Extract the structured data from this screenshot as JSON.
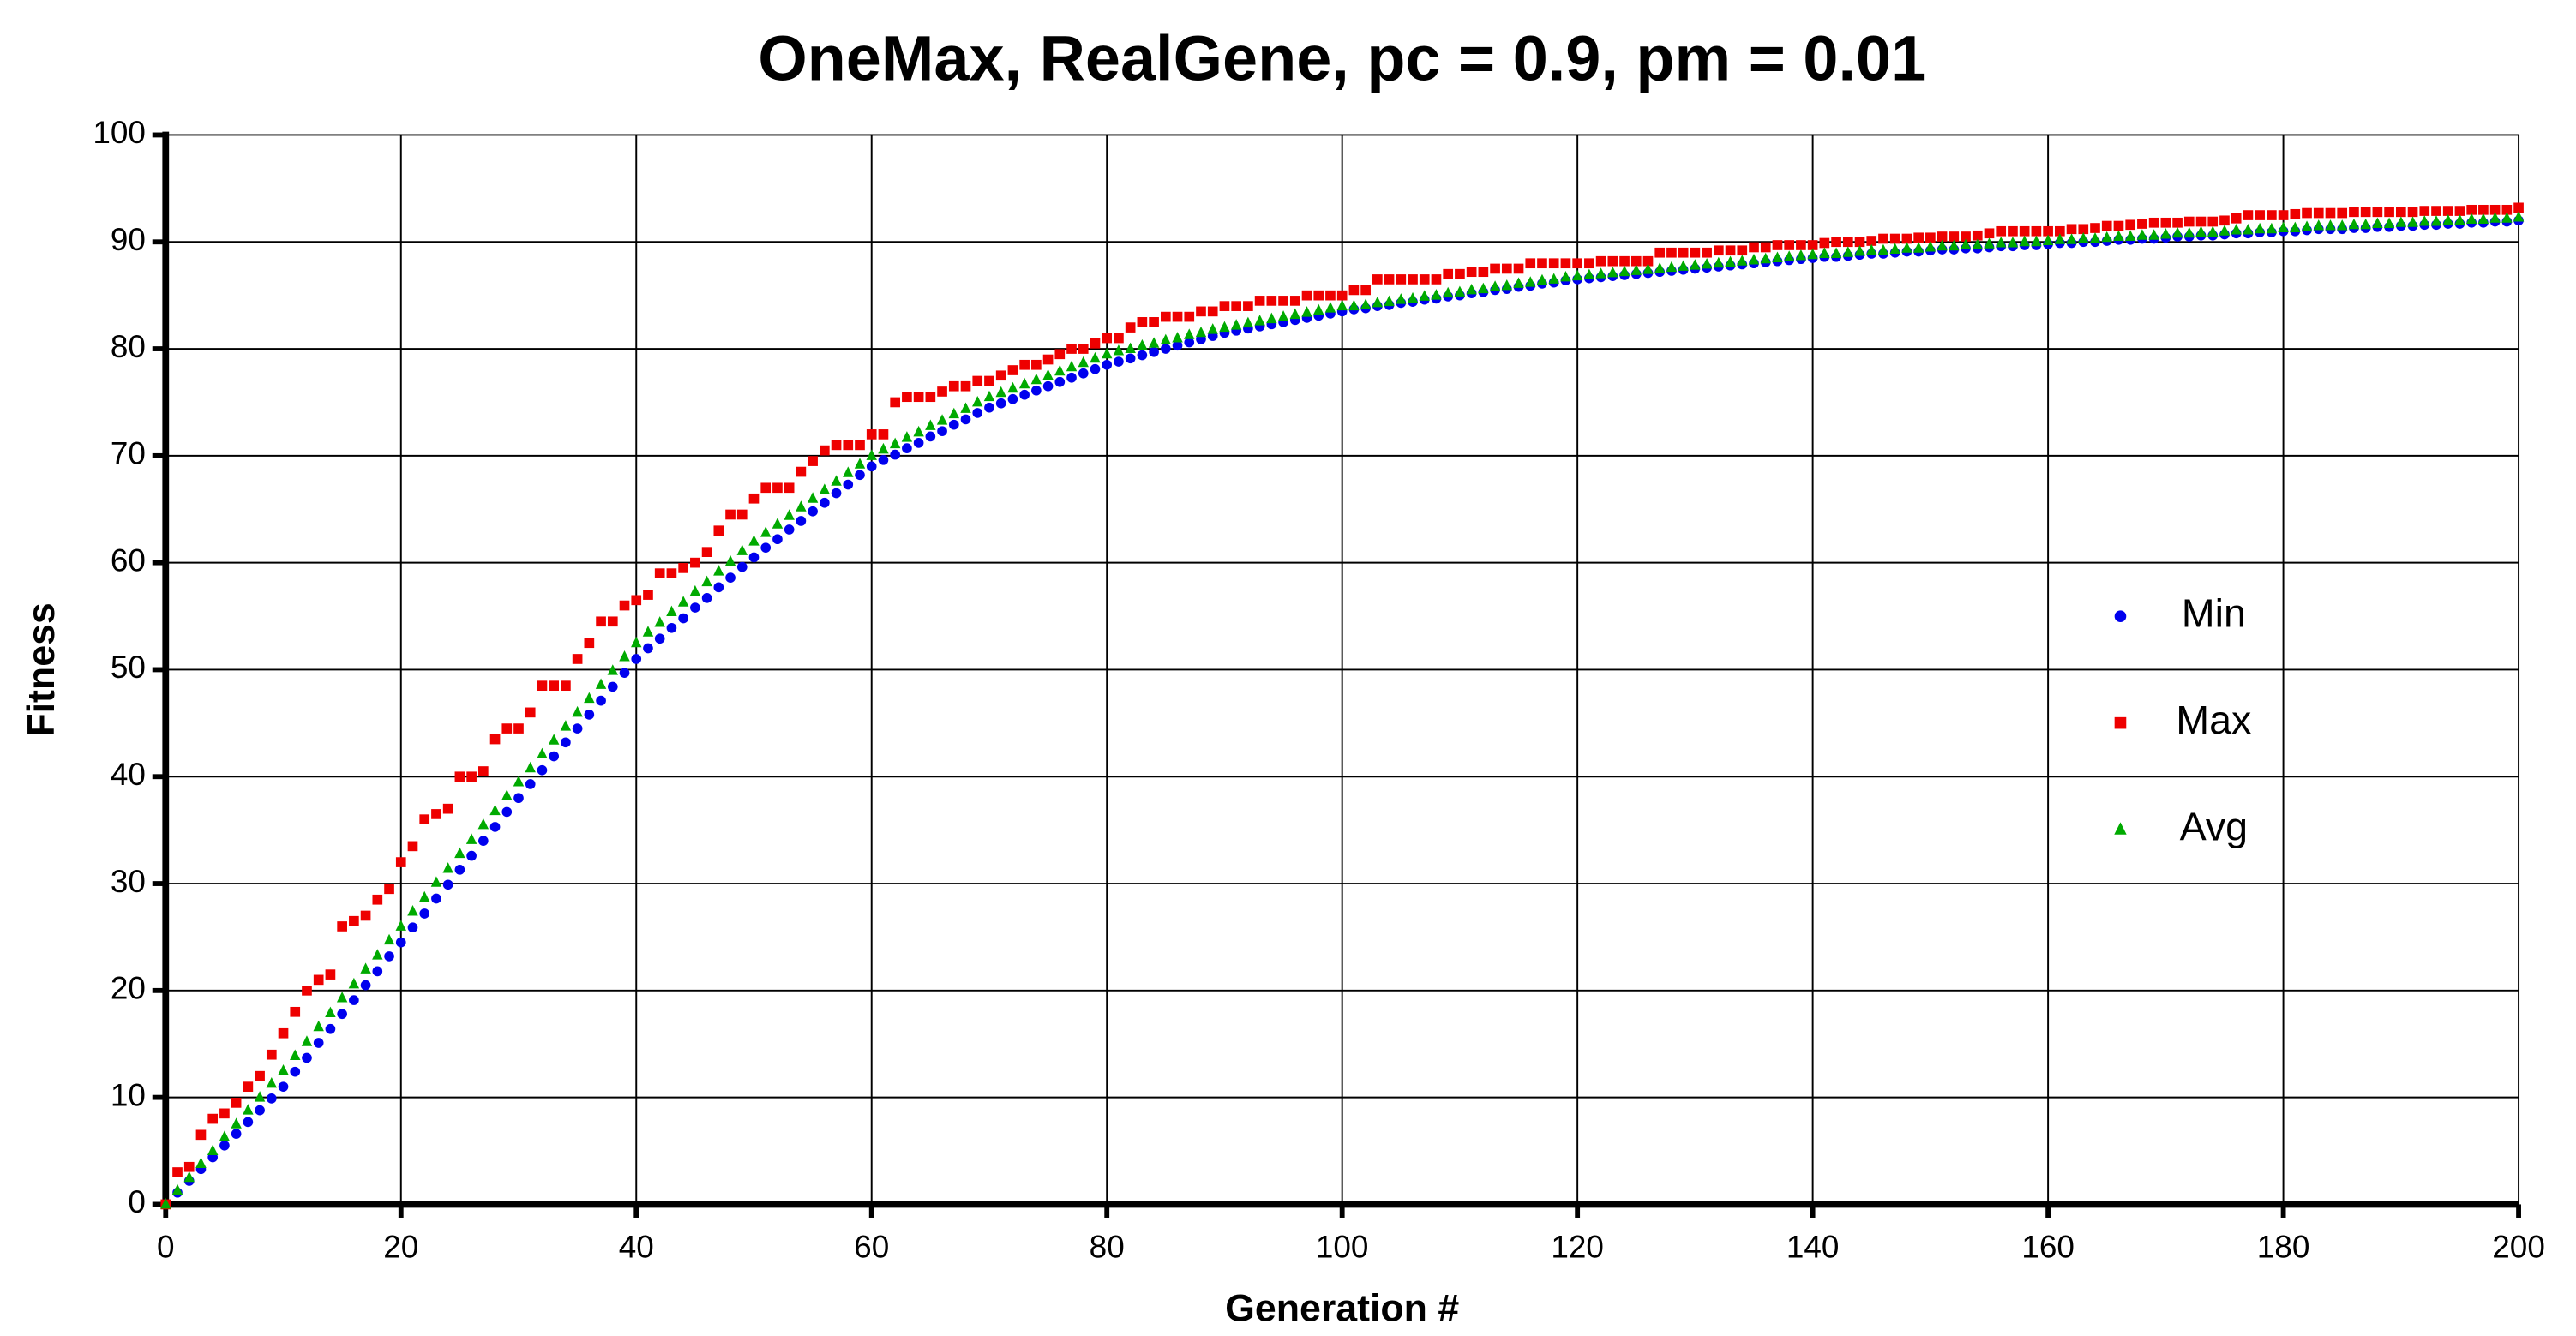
{
  "chart_data": {
    "type": "scatter",
    "title": "OneMax, RealGene, pc = 0.9, pm = 0.01",
    "x_label": "Generation #",
    "y_label": "Fitness",
    "xlim": [
      0,
      200
    ],
    "ylim": [
      0,
      100
    ],
    "xticks": [
      0,
      20,
      40,
      60,
      80,
      100,
      120,
      140,
      160,
      180,
      200
    ],
    "yticks": [
      0,
      10,
      20,
      30,
      40,
      50,
      60,
      70,
      80,
      90,
      100
    ],
    "grid": true,
    "legend": "right",
    "x": [
      0,
      1,
      2,
      3,
      4,
      5,
      6,
      7,
      8,
      9,
      10,
      11,
      12,
      13,
      14,
      15,
      16,
      17,
      18,
      19,
      20,
      21,
      22,
      23,
      24,
      25,
      26,
      27,
      28,
      29,
      30,
      31,
      32,
      33,
      34,
      35,
      36,
      37,
      38,
      39,
      40,
      41,
      42,
      43,
      44,
      45,
      46,
      47,
      48,
      49,
      50,
      51,
      52,
      53,
      54,
      55,
      56,
      57,
      58,
      59,
      60,
      61,
      62,
      63,
      64,
      65,
      66,
      67,
      68,
      69,
      70,
      71,
      72,
      73,
      74,
      75,
      76,
      77,
      78,
      79,
      80,
      81,
      82,
      83,
      84,
      85,
      86,
      87,
      88,
      89,
      90,
      91,
      92,
      93,
      94,
      95,
      96,
      97,
      98,
      99,
      100,
      101,
      102,
      103,
      104,
      105,
      106,
      107,
      108,
      109,
      110,
      111,
      112,
      113,
      114,
      115,
      116,
      117,
      118,
      119,
      120,
      121,
      122,
      123,
      124,
      125,
      126,
      127,
      128,
      129,
      130,
      131,
      132,
      133,
      134,
      135,
      136,
      137,
      138,
      139,
      140,
      141,
      142,
      143,
      144,
      145,
      146,
      147,
      148,
      149,
      150,
      151,
      152,
      153,
      154,
      155,
      156,
      157,
      158,
      159,
      160,
      161,
      162,
      163,
      164,
      165,
      166,
      167,
      168,
      169,
      170,
      171,
      172,
      173,
      174,
      175,
      176,
      177,
      178,
      179,
      180,
      181,
      182,
      183,
      184,
      185,
      186,
      187,
      188,
      189,
      190,
      191,
      192,
      193,
      194,
      195,
      196,
      197,
      198,
      199,
      200
    ],
    "series": [
      {
        "name": "Min",
        "color": "#0000ee",
        "marker": "circle",
        "values": [
          0,
          1.1,
          2.2,
          3.3,
          4.4,
          5.5,
          6.6,
          7.7,
          8.8,
          9.9,
          11,
          12.4,
          13.7,
          15.1,
          16.4,
          17.8,
          19.1,
          20.5,
          21.8,
          23.2,
          24.5,
          25.9,
          27.2,
          28.6,
          29.9,
          31.3,
          32.6,
          34,
          35.3,
          36.7,
          38,
          39.3,
          40.6,
          41.9,
          43.2,
          44.5,
          45.8,
          47.1,
          48.4,
          49.7,
          51,
          52,
          52.9,
          53.9,
          54.8,
          55.8,
          56.7,
          57.7,
          58.6,
          59.6,
          60.5,
          61.4,
          62.2,
          63.1,
          63.9,
          64.8,
          65.6,
          66.5,
          67.3,
          68.2,
          69,
          69.6,
          70.1,
          70.7,
          71.2,
          71.8,
          72.3,
          72.9,
          73.4,
          74,
          74.5,
          74.9,
          75.3,
          75.7,
          76.1,
          76.5,
          76.9,
          77.3,
          77.7,
          78.1,
          78.5,
          78.8,
          79.1,
          79.4,
          79.7,
          80,
          80.3,
          80.6,
          80.9,
          81.2,
          81.5,
          81.7,
          81.9,
          82.1,
          82.3,
          82.5,
          82.7,
          82.9,
          83.1,
          83.3,
          83.5,
          83.7,
          83.8,
          84,
          84.1,
          84.3,
          84.4,
          84.6,
          84.7,
          84.9,
          85,
          85.2,
          85.3,
          85.5,
          85.6,
          85.8,
          85.9,
          86.1,
          86.2,
          86.4,
          86.5,
          86.6,
          86.7,
          86.8,
          86.9,
          87,
          87.1,
          87.2,
          87.3,
          87.4,
          87.5,
          87.6,
          87.7,
          87.8,
          87.9,
          88,
          88.1,
          88.2,
          88.3,
          88.4,
          88.5,
          88.6,
          88.6,
          88.7,
          88.8,
          88.9,
          88.9,
          89,
          89.1,
          89.1,
          89.2,
          89.3,
          89.3,
          89.4,
          89.4,
          89.5,
          89.6,
          89.6,
          89.7,
          89.7,
          89.8,
          89.9,
          89.9,
          90,
          90,
          90.1,
          90.2,
          90.2,
          90.3,
          90.3,
          90.4,
          90.5,
          90.5,
          90.6,
          90.6,
          90.7,
          90.8,
          90.8,
          90.9,
          90.9,
          91,
          91,
          91.1,
          91.2,
          91.2,
          91.2,
          91.3,
          91.3,
          91.4,
          91.4,
          91.5,
          91.5,
          91.6,
          91.6,
          91.7,
          91.7,
          91.8,
          91.8,
          91.9,
          91.9,
          92
        ]
      },
      {
        "name": "Max",
        "color": "#ee0000",
        "marker": "square",
        "values": [
          0,
          3,
          3.5,
          6.5,
          8,
          8.5,
          9.5,
          11,
          12,
          14,
          16,
          18,
          20,
          21,
          21.5,
          26,
          26.5,
          27,
          28.5,
          29.5,
          32,
          33.5,
          36,
          36.5,
          37,
          40,
          40,
          40.5,
          43.5,
          44.5,
          44.5,
          46,
          48.5,
          48.5,
          48.5,
          51,
          52.5,
          54.5,
          54.5,
          56,
          56.5,
          57,
          59,
          59,
          59.5,
          60,
          61,
          63,
          64.5,
          64.5,
          66,
          67,
          67,
          67,
          68.5,
          69.5,
          70.5,
          71,
          71,
          71,
          72,
          72,
          75,
          75.5,
          75.5,
          75.5,
          76,
          76.5,
          76.5,
          77,
          77,
          77.5,
          78,
          78.5,
          78.5,
          79,
          79.5,
          80,
          80,
          80.5,
          81,
          81,
          82,
          82.5,
          82.5,
          83,
          83,
          83,
          83.5,
          83.5,
          84,
          84,
          84,
          84.5,
          84.5,
          84.5,
          84.5,
          85,
          85,
          85,
          85,
          85.5,
          85.5,
          86.5,
          86.5,
          86.5,
          86.5,
          86.5,
          86.5,
          87,
          87,
          87.2,
          87.2,
          87.5,
          87.5,
          87.5,
          88,
          88,
          88,
          88,
          88,
          88,
          88.2,
          88.2,
          88.2,
          88.2,
          88.2,
          89,
          89,
          89,
          89,
          89,
          89.2,
          89.2,
          89.2,
          89.5,
          89.5,
          89.7,
          89.7,
          89.7,
          89.7,
          89.9,
          90,
          90,
          90,
          90.1,
          90.3,
          90.3,
          90.3,
          90.4,
          90.4,
          90.5,
          90.5,
          90.5,
          90.6,
          90.8,
          91,
          91,
          91,
          91,
          91,
          91,
          91.2,
          91.2,
          91.3,
          91.5,
          91.5,
          91.6,
          91.7,
          91.8,
          91.8,
          91.8,
          91.9,
          91.9,
          91.9,
          92,
          92.2,
          92.5,
          92.5,
          92.5,
          92.5,
          92.6,
          92.7,
          92.7,
          92.7,
          92.7,
          92.8,
          92.8,
          92.8,
          92.8,
          92.8,
          92.8,
          92.9,
          92.9,
          92.9,
          92.9,
          93,
          93,
          93,
          93,
          93.2
        ]
      },
      {
        "name": "Avg",
        "color": "#00aa00",
        "marker": "triangle",
        "values": [
          0,
          1.3,
          2.5,
          3.8,
          5,
          6.3,
          7.5,
          8.8,
          10,
          11.3,
          12.5,
          13.9,
          15.2,
          16.6,
          17.9,
          19.3,
          20.6,
          22,
          23.3,
          24.7,
          26,
          27.4,
          28.7,
          30.1,
          31.4,
          32.8,
          34.1,
          35.5,
          36.8,
          38.2,
          39.5,
          40.8,
          42.1,
          43.4,
          44.7,
          46,
          47.3,
          48.6,
          49.9,
          51.2,
          52.5,
          53.5,
          54.4,
          55.4,
          56.3,
          57.3,
          58.2,
          59.2,
          60.1,
          61.1,
          62,
          62.8,
          63.6,
          64.4,
          65.2,
          66,
          66.8,
          67.6,
          68.4,
          69.2,
          70,
          70.6,
          71.1,
          71.7,
          72.2,
          72.8,
          73.3,
          73.9,
          74.4,
          75,
          75.5,
          75.9,
          76.3,
          76.7,
          77.1,
          77.5,
          77.9,
          78.3,
          78.7,
          79.1,
          79.5,
          79.8,
          80,
          80.3,
          80.5,
          80.8,
          81,
          81.3,
          81.5,
          81.8,
          82,
          82.2,
          82.4,
          82.6,
          82.8,
          83,
          83.2,
          83.4,
          83.6,
          83.8,
          84,
          84,
          84.1,
          84.3,
          84.4,
          84.6,
          84.7,
          84.9,
          85,
          85.2,
          85.3,
          85.5,
          85.6,
          85.8,
          85.9,
          86.1,
          86.2,
          86.4,
          86.5,
          86.7,
          86.8,
          86.9,
          87,
          87.1,
          87.2,
          87.3,
          87.4,
          87.5,
          87.6,
          87.7,
          87.8,
          87.9,
          88,
          88.1,
          88.2,
          88.3,
          88.4,
          88.5,
          88.6,
          88.7,
          88.8,
          88.9,
          88.9,
          89,
          89.1,
          89.2,
          89.2,
          89.3,
          89.4,
          89.4,
          89.5,
          89.6,
          89.6,
          89.7,
          89.7,
          89.8,
          89.9,
          89.9,
          90,
          90,
          90.1,
          90.2,
          90.2,
          90.3,
          90.3,
          90.4,
          90.5,
          90.5,
          90.6,
          90.6,
          90.7,
          90.8,
          90.8,
          90.9,
          90.9,
          91,
          91.1,
          91.1,
          91.2,
          91.2,
          91.3,
          91.3,
          91.4,
          91.5,
          91.5,
          91.5,
          91.6,
          91.6,
          91.7,
          91.7,
          91.8,
          91.8,
          91.9,
          91.9,
          92,
          92,
          92.1,
          92.1,
          92.2,
          92.2,
          92.3
        ]
      }
    ]
  }
}
